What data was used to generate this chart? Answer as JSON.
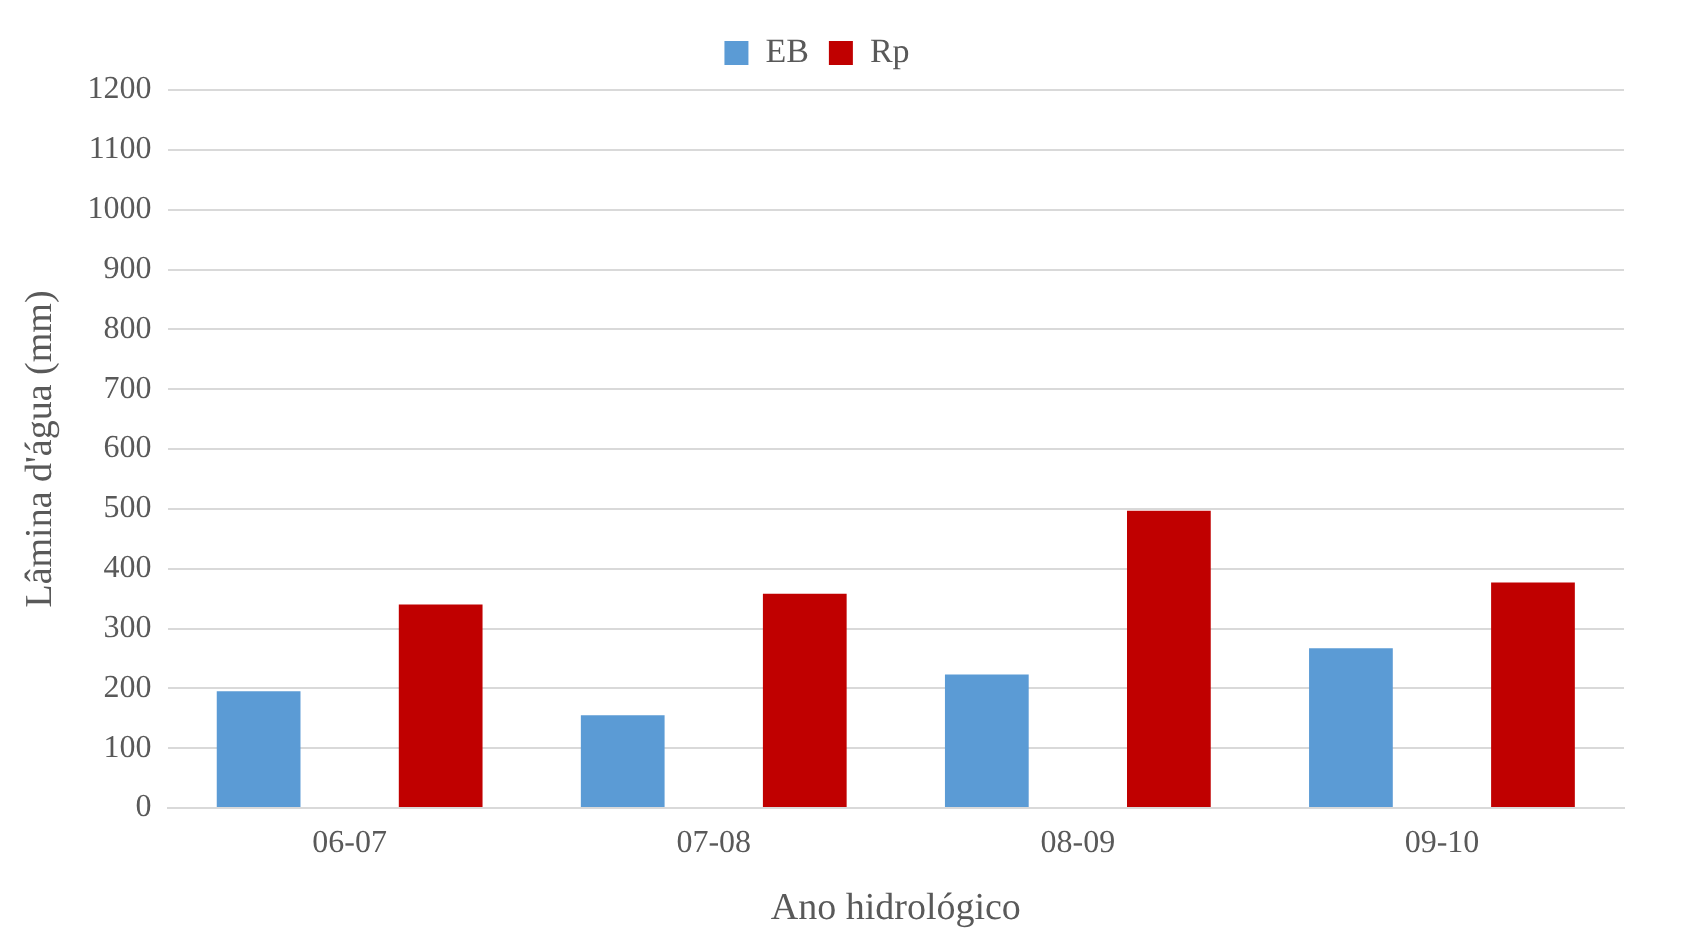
{
  "chart_data": {
    "type": "bar",
    "xlabel": "Ano hidrológico",
    "ylabel": "Lâmina d'água (mm)",
    "categories": [
      "06-07",
      "07-08",
      "08-09",
      "09-10"
    ],
    "series": [
      {
        "name": "EB",
        "color": "#5b9bd5",
        "values": [
          195,
          155,
          223,
          267
        ]
      },
      {
        "name": "Rp",
        "color": "#c00000",
        "values": [
          340,
          358,
          497,
          377
        ]
      }
    ],
    "ylim": [
      0,
      1200
    ],
    "yticks": [
      0,
      100,
      200,
      300,
      400,
      500,
      600,
      700,
      800,
      900,
      1000,
      1100,
      1200
    ],
    "grid": "y",
    "legend": "top"
  }
}
